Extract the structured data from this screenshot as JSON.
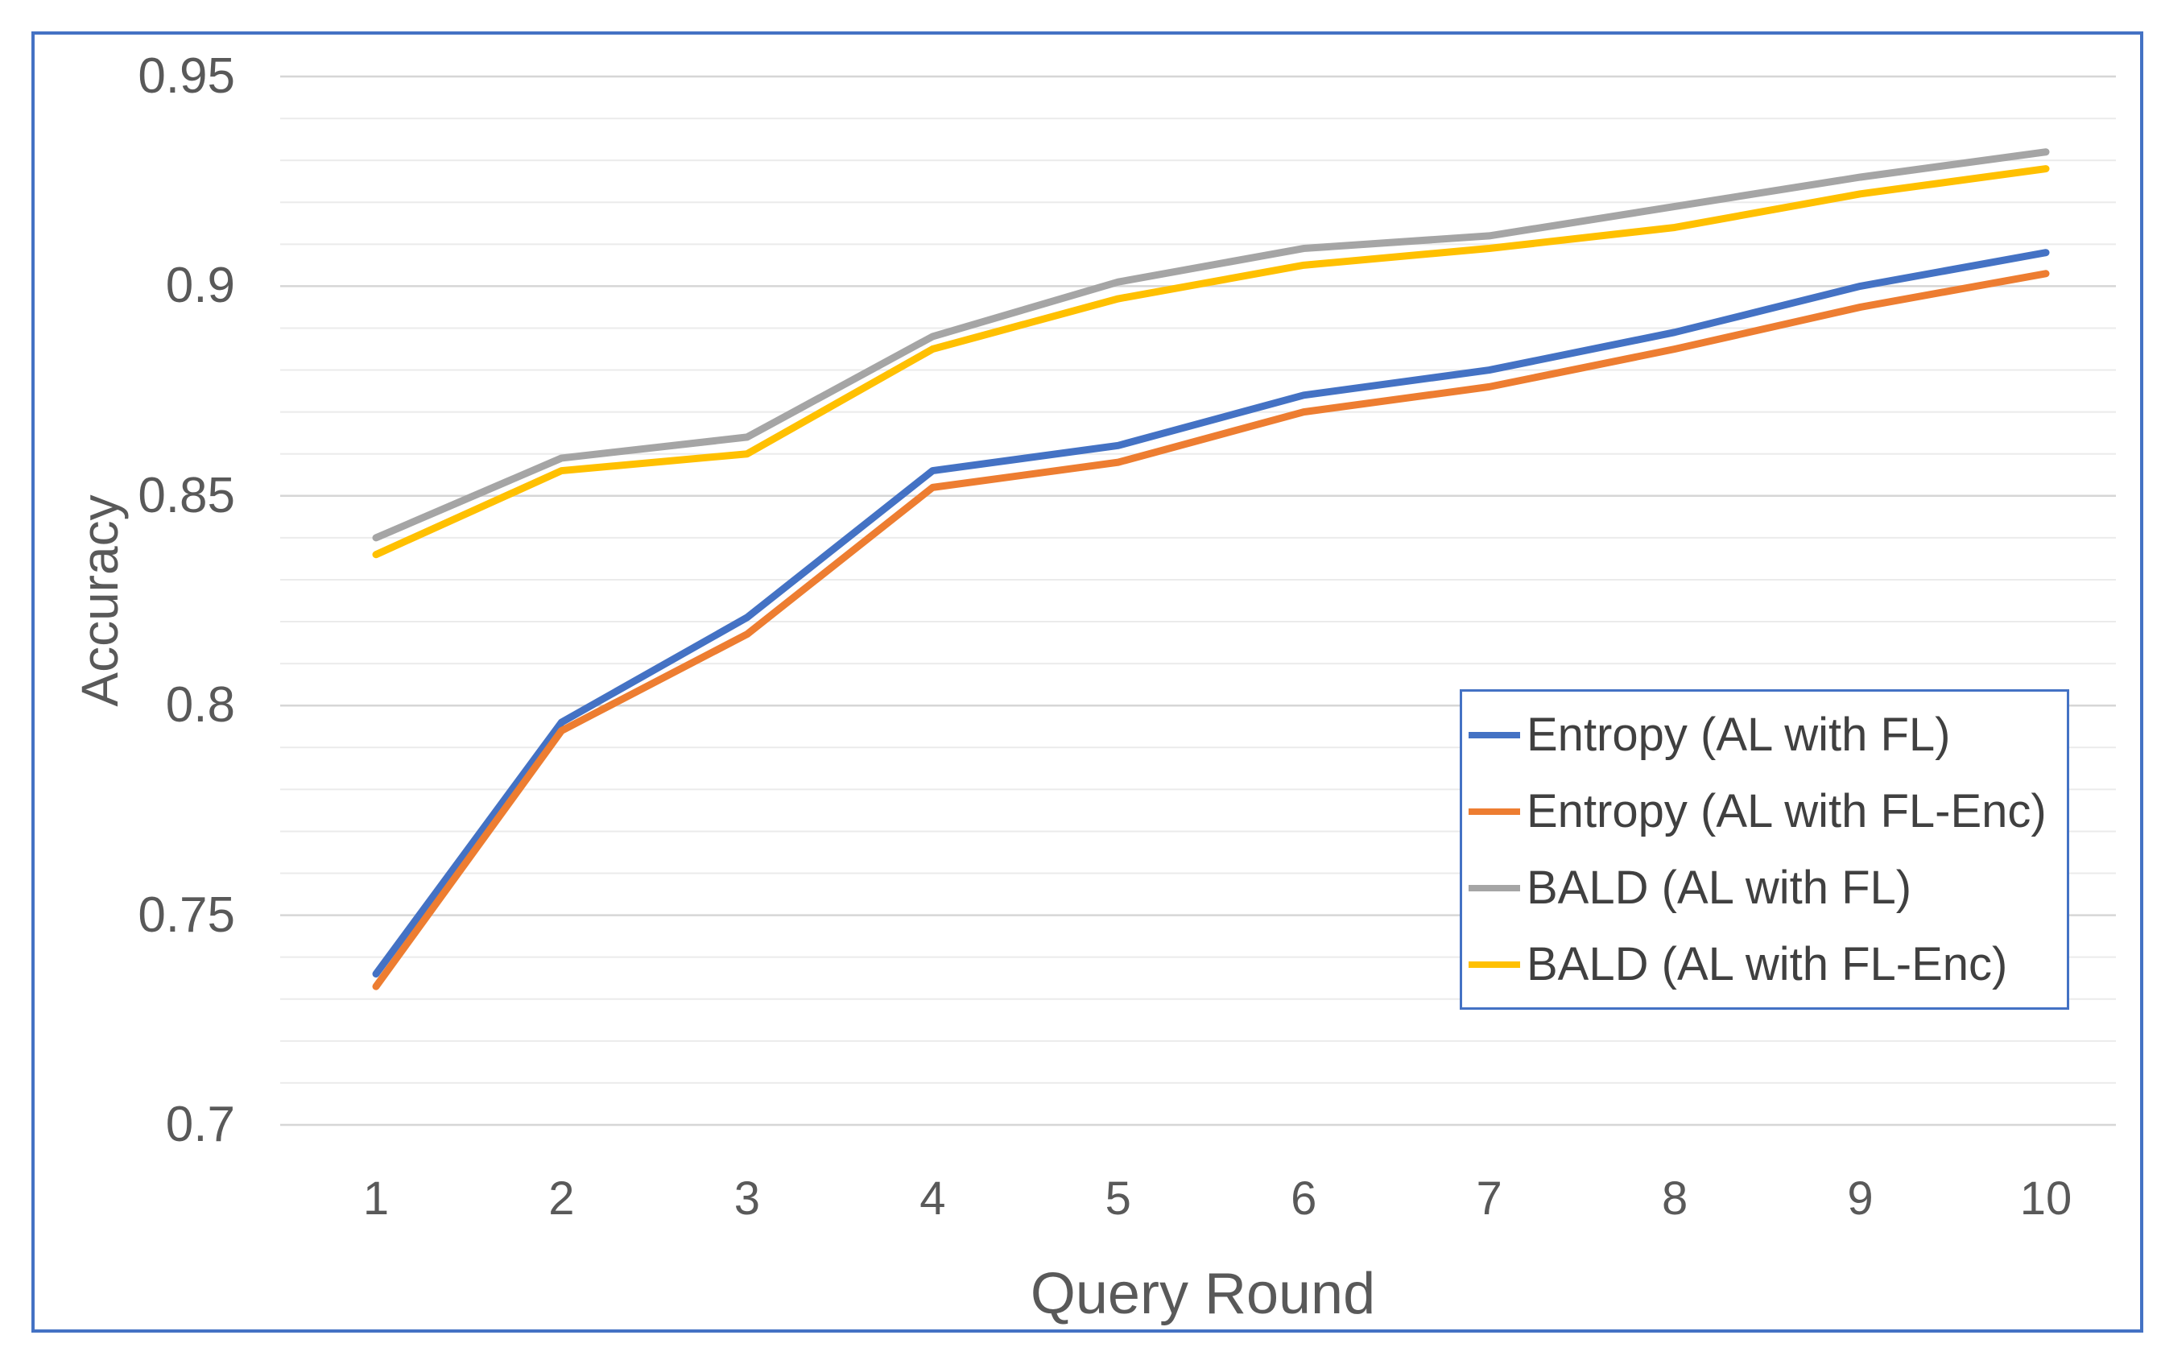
{
  "chart_data": {
    "type": "line",
    "title": "",
    "xlabel": "Query Round",
    "ylabel": "Accuracy",
    "x": [
      1,
      2,
      3,
      4,
      5,
      6,
      7,
      8,
      9,
      10
    ],
    "x_tick_labels": [
      "1",
      "2",
      "3",
      "4",
      "5",
      "6",
      "7",
      "8",
      "9",
      "10"
    ],
    "y_tick_labels": [
      "0.95",
      "0.9",
      "0.85",
      "0.8",
      "0.75",
      "0.7"
    ],
    "ylim": [
      0.7,
      0.95
    ],
    "grid": true,
    "grid_minor_step": 0.01,
    "grid_major_step": 0.05,
    "legend_position": "middle-right-box",
    "series": [
      {
        "name": "Entropy (AL with FL)",
        "color": "#4472C4",
        "values": [
          0.736,
          0.796,
          0.821,
          0.856,
          0.862,
          0.874,
          0.88,
          0.889,
          0.9,
          0.908
        ]
      },
      {
        "name": "Entropy (AL with FL-Enc)",
        "color": "#ED7D31",
        "values": [
          0.733,
          0.794,
          0.817,
          0.852,
          0.858,
          0.87,
          0.876,
          0.885,
          0.895,
          0.903
        ]
      },
      {
        "name": "BALD (AL with FL)",
        "color": "#A5A5A5",
        "values": [
          0.84,
          0.859,
          0.864,
          0.888,
          0.901,
          0.909,
          0.912,
          0.919,
          0.926,
          0.932
        ]
      },
      {
        "name": "BALD (AL with FL-Enc)",
        "color": "#FFC000",
        "values": [
          0.836,
          0.856,
          0.86,
          0.885,
          0.897,
          0.905,
          0.909,
          0.914,
          0.922,
          0.928
        ]
      }
    ],
    "frame_color": "#4472C4",
    "legend_border_color": "#4472C4",
    "gridline_color_major": "#D6D6D6",
    "gridline_color_minor": "#EBEBEB",
    "text_color": "#595959",
    "background_color": "#FFFFFF"
  }
}
